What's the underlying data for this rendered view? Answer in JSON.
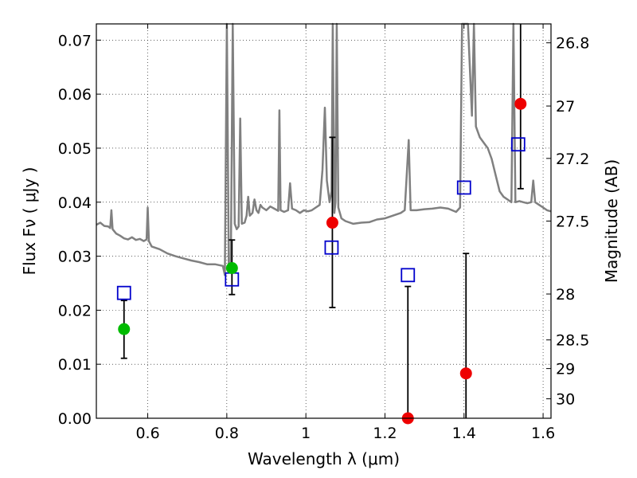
{
  "chart_data": {
    "type": "scatter",
    "xlabel": "Wavelength  λ (μm)",
    "ylabel": "Flux  Fν  ( μJy )",
    "y2label": "Magnitude (AB)",
    "xlim": [
      0.47,
      1.62
    ],
    "ylim": [
      0.0,
      0.073
    ],
    "grid": true,
    "colors": {
      "spectrum": "#808080",
      "model_band": "#0000cc",
      "green_point": "#00bb00",
      "red_point": "#ee0000",
      "error_bar": "#000000"
    },
    "x_ticks": [
      {
        "value": 0.6,
        "label": "0.6"
      },
      {
        "value": 0.8,
        "label": "0.8"
      },
      {
        "value": 1.0,
        "label": "1"
      },
      {
        "value": 1.2,
        "label": "1.2"
      },
      {
        "value": 1.4,
        "label": "1.4"
      },
      {
        "value": 1.6,
        "label": "1.6"
      }
    ],
    "y_ticks": [
      {
        "value": 0.0,
        "label": "0.00"
      },
      {
        "value": 0.01,
        "label": "0.01"
      },
      {
        "value": 0.02,
        "label": "0.02"
      },
      {
        "value": 0.03,
        "label": "0.03"
      },
      {
        "value": 0.04,
        "label": "0.04"
      },
      {
        "value": 0.05,
        "label": "0.05"
      },
      {
        "value": 0.06,
        "label": "0.06"
      },
      {
        "value": 0.07,
        "label": "0.07"
      }
    ],
    "y2_ticks": [
      {
        "label": "26.8",
        "flux": 0.0695
      },
      {
        "label": "27",
        "flux": 0.0578
      },
      {
        "label": "27.2",
        "flux": 0.0481
      },
      {
        "label": "27.5",
        "flux": 0.0365
      },
      {
        "label": "28",
        "flux": 0.023
      },
      {
        "label": "28.5",
        "flux": 0.0145
      },
      {
        "label": "29",
        "flux": 0.0092
      },
      {
        "label": "30",
        "flux": 0.0036
      }
    ],
    "model_points": [
      {
        "x": 0.54,
        "y": 0.0232
      },
      {
        "x": 0.813,
        "y": 0.0257
      },
      {
        "x": 1.065,
        "y": 0.0316
      },
      {
        "x": 1.258,
        "y": 0.0265
      },
      {
        "x": 1.4,
        "y": 0.0427
      },
      {
        "x": 1.537,
        "y": 0.0507
      }
    ],
    "observed_points": [
      {
        "x": 0.54,
        "y": 0.0165,
        "yerr_low": 0.0111,
        "yerr_high": 0.0218,
        "color": "green"
      },
      {
        "x": 0.813,
        "y": 0.0278,
        "yerr_low": 0.0229,
        "yerr_high": 0.033,
        "color": "green"
      },
      {
        "x": 1.067,
        "y": 0.0362,
        "yerr_low": 0.0205,
        "yerr_high": 0.052,
        "color": "red"
      },
      {
        "x": 1.258,
        "y": 0.0,
        "yerr_low": 0.0,
        "yerr_high": 0.0244,
        "color": "red"
      },
      {
        "x": 1.405,
        "y": 0.0083,
        "yerr_low": 0.0,
        "yerr_high": 0.0305,
        "color": "red"
      },
      {
        "x": 1.543,
        "y": 0.0582,
        "yerr_low": 0.0425,
        "yerr_high": 0.073,
        "color": "red"
      }
    ],
    "spectrum": [
      [
        0.47,
        0.0358
      ],
      [
        0.48,
        0.0362
      ],
      [
        0.49,
        0.0356
      ],
      [
        0.5,
        0.0355
      ],
      [
        0.505,
        0.0352
      ],
      [
        0.508,
        0.0385
      ],
      [
        0.511,
        0.035
      ],
      [
        0.52,
        0.0342
      ],
      [
        0.53,
        0.0338
      ],
      [
        0.54,
        0.0333
      ],
      [
        0.55,
        0.0331
      ],
      [
        0.56,
        0.0335
      ],
      [
        0.57,
        0.033
      ],
      [
        0.58,
        0.0332
      ],
      [
        0.59,
        0.0328
      ],
      [
        0.597,
        0.0331
      ],
      [
        0.6,
        0.039
      ],
      [
        0.603,
        0.0328
      ],
      [
        0.61,
        0.0318
      ],
      [
        0.63,
        0.0313
      ],
      [
        0.65,
        0.0305
      ],
      [
        0.67,
        0.03
      ],
      [
        0.69,
        0.0296
      ],
      [
        0.71,
        0.0292
      ],
      [
        0.73,
        0.0289
      ],
      [
        0.75,
        0.0285
      ],
      [
        0.77,
        0.0285
      ],
      [
        0.79,
        0.0282
      ],
      [
        0.795,
        0.0265
      ],
      [
        0.8,
        0.073
      ],
      [
        0.805,
        0.0285
      ],
      [
        0.81,
        0.027
      ],
      [
        0.815,
        0.073
      ],
      [
        0.82,
        0.036
      ],
      [
        0.825,
        0.035
      ],
      [
        0.83,
        0.0355
      ],
      [
        0.834,
        0.0555
      ],
      [
        0.838,
        0.036
      ],
      [
        0.845,
        0.0362
      ],
      [
        0.85,
        0.0375
      ],
      [
        0.854,
        0.041
      ],
      [
        0.858,
        0.0375
      ],
      [
        0.865,
        0.038
      ],
      [
        0.87,
        0.0405
      ],
      [
        0.875,
        0.0385
      ],
      [
        0.88,
        0.038
      ],
      [
        0.885,
        0.0395
      ],
      [
        0.89,
        0.039
      ],
      [
        0.9,
        0.0385
      ],
      [
        0.91,
        0.0392
      ],
      [
        0.92,
        0.0388
      ],
      [
        0.93,
        0.0384
      ],
      [
        0.933,
        0.057
      ],
      [
        0.936,
        0.0385
      ],
      [
        0.945,
        0.0382
      ],
      [
        0.955,
        0.0385
      ],
      [
        0.96,
        0.0435
      ],
      [
        0.965,
        0.0388
      ],
      [
        0.975,
        0.0385
      ],
      [
        0.985,
        0.038
      ],
      [
        0.995,
        0.0385
      ],
      [
        1.005,
        0.0383
      ],
      [
        1.015,
        0.0385
      ],
      [
        1.025,
        0.039
      ],
      [
        1.035,
        0.0395
      ],
      [
        1.042,
        0.046
      ],
      [
        1.048,
        0.0575
      ],
      [
        1.053,
        0.044
      ],
      [
        1.06,
        0.04
      ],
      [
        1.065,
        0.042
      ],
      [
        1.068,
        0.073
      ],
      [
        1.072,
        0.038
      ],
      [
        1.075,
        0.04
      ],
      [
        1.078,
        0.073
      ],
      [
        1.082,
        0.039
      ],
      [
        1.09,
        0.037
      ],
      [
        1.1,
        0.0365
      ],
      [
        1.12,
        0.036
      ],
      [
        1.14,
        0.0362
      ],
      [
        1.16,
        0.0363
      ],
      [
        1.18,
        0.0368
      ],
      [
        1.2,
        0.037
      ],
      [
        1.22,
        0.0375
      ],
      [
        1.24,
        0.038
      ],
      [
        1.25,
        0.0385
      ],
      [
        1.26,
        0.0515
      ],
      [
        1.265,
        0.0385
      ],
      [
        1.28,
        0.0385
      ],
      [
        1.3,
        0.0387
      ],
      [
        1.32,
        0.0388
      ],
      [
        1.34,
        0.039
      ],
      [
        1.36,
        0.0388
      ],
      [
        1.38,
        0.0382
      ],
      [
        1.39,
        0.039
      ],
      [
        1.395,
        0.073
      ],
      [
        1.4,
        0.073
      ],
      [
        1.41,
        0.073
      ],
      [
        1.42,
        0.056
      ],
      [
        1.425,
        0.073
      ],
      [
        1.43,
        0.054
      ],
      [
        1.44,
        0.052
      ],
      [
        1.45,
        0.051
      ],
      [
        1.46,
        0.05
      ],
      [
        1.47,
        0.048
      ],
      [
        1.48,
        0.045
      ],
      [
        1.49,
        0.042
      ],
      [
        1.5,
        0.041
      ],
      [
        1.51,
        0.0405
      ],
      [
        1.52,
        0.04
      ],
      [
        1.525,
        0.073
      ],
      [
        1.53,
        0.04
      ],
      [
        1.54,
        0.0402
      ],
      [
        1.55,
        0.04
      ],
      [
        1.56,
        0.0398
      ],
      [
        1.57,
        0.04
      ],
      [
        1.575,
        0.044
      ],
      [
        1.58,
        0.04
      ],
      [
        1.59,
        0.0395
      ],
      [
        1.6,
        0.039
      ],
      [
        1.61,
        0.0385
      ],
      [
        1.62,
        0.0383
      ]
    ]
  }
}
